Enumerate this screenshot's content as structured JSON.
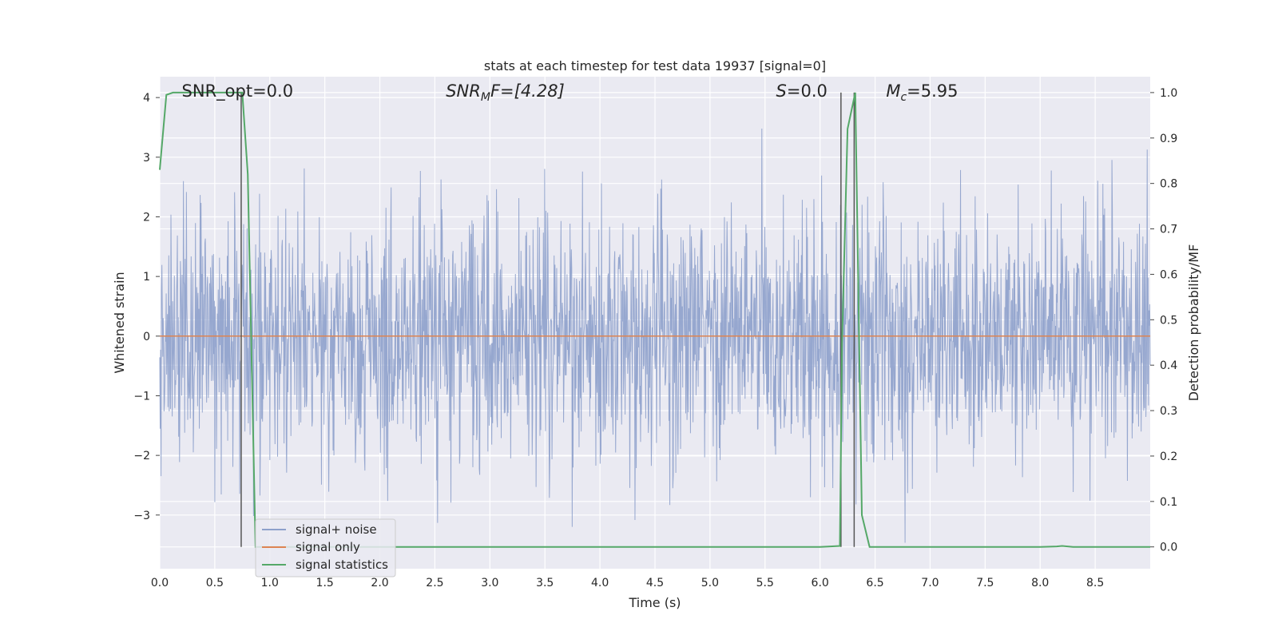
{
  "chart_data": {
    "type": "line",
    "title": "stats at each timestep for test data 19937 [signal=0]",
    "xlabel": "Time (s)",
    "ylabel": "Whitened strain",
    "y2label": "Detection probability/MF",
    "xlim": [
      0.0,
      9.0
    ],
    "ylim": [
      -3.9,
      4.35
    ],
    "y2lim": [
      -0.048,
      1.035
    ],
    "xticks": [
      0.0,
      0.5,
      1.0,
      1.5,
      2.0,
      2.5,
      3.0,
      3.5,
      4.0,
      4.5,
      5.0,
      5.5,
      6.0,
      6.5,
      7.0,
      7.5,
      8.0,
      8.5
    ],
    "xtick_labels": [
      "0.0",
      "0.5",
      "1.0",
      "1.5",
      "2.0",
      "2.5",
      "3.0",
      "3.5",
      "4.0",
      "4.5",
      "5.0",
      "5.5",
      "6.0",
      "6.5",
      "7.0",
      "7.5",
      "8.0",
      "8.5"
    ],
    "yticks": [
      -3,
      -2,
      -1,
      0,
      1,
      2,
      3,
      4
    ],
    "ytick_labels": [
      "−3",
      "−2",
      "−1",
      "0",
      "1",
      "2",
      "3",
      "4"
    ],
    "y2ticks": [
      0.0,
      0.1,
      0.2,
      0.3,
      0.4,
      0.5,
      0.6,
      0.7,
      0.8,
      0.9,
      1.0
    ],
    "y2tick_labels": [
      "0.0",
      "0.1",
      "0.2",
      "0.3",
      "0.4",
      "0.5",
      "0.6",
      "0.7",
      "0.8",
      "0.9",
      "1.0"
    ],
    "grid": true,
    "legend_position": "lower-left",
    "series": [
      {
        "name": "signal+ noise",
        "color": "#8da0cb",
        "axis": "left",
        "kind": "whitened-noise",
        "x_range": [
          0.0,
          9.0
        ],
        "n_samples": 2304,
        "y_range": [
          -3.6,
          4.0
        ]
      },
      {
        "name": "signal only",
        "color": "#dd8452",
        "axis": "left",
        "x": [
          0.0,
          9.0
        ],
        "y": [
          0.0,
          0.0
        ]
      },
      {
        "name": "signal statistics",
        "color": "#55a868",
        "axis": "right",
        "x": [
          0.0,
          0.06,
          0.12,
          0.2,
          0.3,
          0.5,
          0.7,
          0.75,
          0.8,
          0.87,
          0.9,
          1.5,
          2.0,
          3.0,
          4.0,
          5.0,
          6.0,
          6.18,
          6.2,
          6.25,
          6.32,
          6.38,
          6.45,
          7.0,
          8.0,
          8.15,
          8.2,
          8.3,
          9.0
        ],
        "y": [
          0.83,
          0.995,
          1.0,
          1.0,
          1.0,
          1.0,
          1.0,
          1.0,
          0.82,
          0.0,
          0.0,
          0.0,
          0.0,
          0.0,
          0.0,
          0.0,
          0.0,
          0.002,
          0.45,
          0.92,
          1.0,
          0.07,
          0.0,
          0.0,
          0.0,
          0.001,
          0.002,
          0.0,
          0.0
        ]
      }
    ],
    "vlines": [
      {
        "x": 0.74,
        "color": "#555555"
      },
      {
        "x": 6.19,
        "color": "#555555"
      },
      {
        "x": 6.31,
        "color": "#555555"
      }
    ],
    "annotations": [
      {
        "id": "snr-opt",
        "x": 0.2,
        "text_plain": "SNR_opt=0.0"
      },
      {
        "id": "snr-mf",
        "x": 2.6,
        "base": "SNR",
        "sub": "M",
        "rest": "F=[4.28]"
      },
      {
        "id": "s-stat",
        "x": 5.6,
        "base": "S",
        "rest": "=0.0"
      },
      {
        "id": "mc",
        "x": 6.6,
        "base": "M",
        "sub": "c",
        "rest": "=5.95"
      }
    ]
  }
}
